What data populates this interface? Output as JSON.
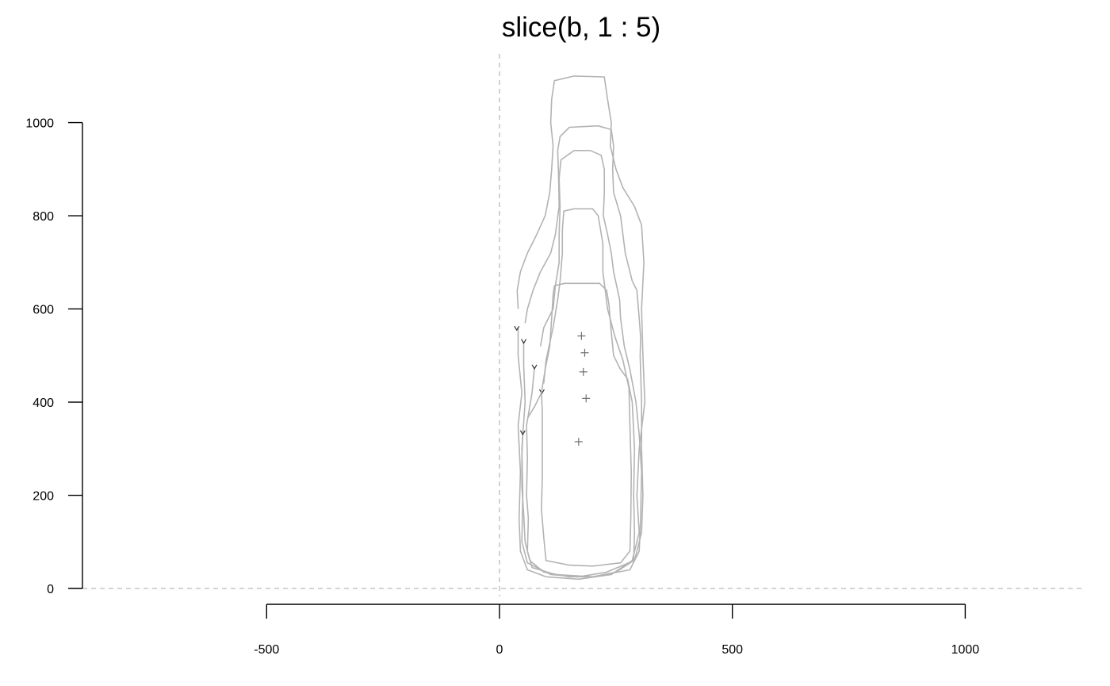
{
  "chart_data": {
    "type": "line",
    "title": "slice(b, 1 : 5)",
    "xlabel": "",
    "ylabel": "",
    "xlim": [
      -900,
      1250
    ],
    "ylim": [
      0,
      1000
    ],
    "x_ticks": [
      -500,
      0,
      500,
      1000
    ],
    "x_tick_labels": [
      "-500",
      "0",
      "500",
      "1000"
    ],
    "y_ticks": [
      0,
      200,
      400,
      600,
      800,
      1000
    ],
    "y_tick_labels": [
      "0",
      "200",
      "400",
      "600",
      "800",
      "1000"
    ],
    "grid": false,
    "reference_lines": {
      "x": 0,
      "y": 0,
      "style": "dashed"
    },
    "colors": {
      "outline": "#b3b3b3",
      "centroid": "#707070",
      "start": "#333333",
      "axis": "#000000",
      "reference": "#bbbbbb"
    },
    "series": [
      {
        "outline": [
          [
            40,
            600
          ],
          [
            38,
            640
          ],
          [
            45,
            680
          ],
          [
            60,
            720
          ],
          [
            80,
            760
          ],
          [
            98,
            800
          ],
          [
            108,
            850
          ],
          [
            112,
            900
          ],
          [
            115,
            950
          ],
          [
            110,
            1000
          ],
          [
            112,
            1050
          ],
          [
            118,
            1090
          ],
          [
            160,
            1100
          ],
          [
            225,
            1098
          ],
          [
            232,
            1050
          ],
          [
            240,
            1000
          ],
          [
            238,
            950
          ],
          [
            250,
            900
          ],
          [
            265,
            860
          ],
          [
            290,
            820
          ],
          [
            305,
            780
          ],
          [
            310,
            700
          ],
          [
            305,
            600
          ],
          [
            308,
            500
          ],
          [
            312,
            400
          ],
          [
            300,
            300
          ],
          [
            295,
            200
          ],
          [
            300,
            120
          ],
          [
            285,
            60
          ],
          [
            240,
            30
          ],
          [
            170,
            20
          ],
          [
            100,
            25
          ],
          [
            60,
            40
          ],
          [
            45,
            80
          ],
          [
            42,
            150
          ],
          [
            45,
            250
          ],
          [
            40,
            350
          ],
          [
            48,
            420
          ],
          [
            40,
            500
          ],
          [
            40,
            560
          ]
        ],
        "centroid": [
          176,
          542
        ],
        "start": [
          37,
          558
        ]
      },
      {
        "outline": [
          [
            55,
            570
          ],
          [
            60,
            600
          ],
          [
            72,
            640
          ],
          [
            88,
            680
          ],
          [
            110,
            720
          ],
          [
            120,
            760
          ],
          [
            128,
            820
          ],
          [
            127,
            880
          ],
          [
            125,
            940
          ],
          [
            130,
            970
          ],
          [
            150,
            990
          ],
          [
            212,
            993
          ],
          [
            240,
            985
          ],
          [
            245,
            950
          ],
          [
            243,
            900
          ],
          [
            245,
            850
          ],
          [
            260,
            800
          ],
          [
            270,
            720
          ],
          [
            285,
            660
          ],
          [
            295,
            640
          ],
          [
            300,
            580
          ],
          [
            303,
            540
          ],
          [
            302,
            500
          ],
          [
            305,
            400
          ],
          [
            305,
            300
          ],
          [
            308,
            200
          ],
          [
            305,
            120
          ],
          [
            290,
            60
          ],
          [
            230,
            35
          ],
          [
            170,
            25
          ],
          [
            110,
            30
          ],
          [
            60,
            55
          ],
          [
            48,
            100
          ],
          [
            50,
            200
          ],
          [
            48,
            300
          ],
          [
            55,
            400
          ],
          [
            52,
            480
          ],
          [
            52,
            530
          ]
        ],
        "centroid": [
          183,
          506
        ],
        "start": [
          52,
          530
        ]
      },
      {
        "outline": [
          [
            88,
            520
          ],
          [
            95,
            560
          ],
          [
            115,
            600
          ],
          [
            120,
            650
          ],
          [
            128,
            700
          ],
          [
            128,
            760
          ],
          [
            130,
            820
          ],
          [
            128,
            880
          ],
          [
            132,
            920
          ],
          [
            160,
            940
          ],
          [
            195,
            940
          ],
          [
            218,
            930
          ],
          [
            225,
            900
          ],
          [
            225,
            850
          ],
          [
            223,
            800
          ],
          [
            232,
            760
          ],
          [
            240,
            720
          ],
          [
            245,
            680
          ],
          [
            258,
            620
          ],
          [
            260,
            580
          ],
          [
            268,
            520
          ],
          [
            280,
            470
          ],
          [
            293,
            400
          ],
          [
            300,
            330
          ],
          [
            305,
            250
          ],
          [
            303,
            150
          ],
          [
            300,
            80
          ],
          [
            280,
            40
          ],
          [
            200,
            25
          ],
          [
            120,
            30
          ],
          [
            70,
            45
          ],
          [
            60,
            80
          ],
          [
            62,
            150
          ],
          [
            58,
            200
          ],
          [
            60,
            280
          ],
          [
            58,
            350
          ],
          [
            70,
            420
          ],
          [
            75,
            475
          ]
        ],
        "centroid": [
          180,
          465
        ],
        "start": [
          75,
          475
        ]
      },
      {
        "outline": [
          [
            90,
            420
          ],
          [
            92,
            380
          ],
          [
            92,
            300
          ],
          [
            92,
            240
          ],
          [
            90,
            170
          ],
          [
            95,
            110
          ],
          [
            100,
            60
          ],
          [
            150,
            50
          ],
          [
            200,
            48
          ],
          [
            260,
            55
          ],
          [
            280,
            80
          ],
          [
            282,
            150
          ],
          [
            283,
            250
          ],
          [
            280,
            350
          ],
          [
            278,
            430
          ],
          [
            265,
            490
          ],
          [
            248,
            540
          ],
          [
            232,
            600
          ],
          [
            222,
            680
          ],
          [
            222,
            740
          ],
          [
            212,
            800
          ],
          [
            200,
            815
          ],
          [
            160,
            815
          ],
          [
            138,
            810
          ],
          [
            135,
            770
          ],
          [
            135,
            720
          ],
          [
            130,
            660
          ],
          [
            125,
            620
          ],
          [
            115,
            560
          ],
          [
            100,
            490
          ],
          [
            95,
            440
          ]
        ],
        "centroid": [
          186,
          408
        ],
        "start": [
          91,
          422
        ]
      },
      {
        "outline": [
          [
            50,
            340
          ],
          [
            48,
            280
          ],
          [
            48,
            220
          ],
          [
            52,
            160
          ],
          [
            55,
            100
          ],
          [
            65,
            60
          ],
          [
            95,
            35
          ],
          [
            150,
            25
          ],
          [
            200,
            25
          ],
          [
            250,
            35
          ],
          [
            288,
            60
          ],
          [
            290,
            120
          ],
          [
            288,
            200
          ],
          [
            290,
            300
          ],
          [
            285,
            400
          ],
          [
            275,
            450
          ],
          [
            260,
            470
          ],
          [
            245,
            500
          ],
          [
            240,
            550
          ],
          [
            235,
            610
          ],
          [
            230,
            640
          ],
          [
            215,
            655
          ],
          [
            180,
            655
          ],
          [
            140,
            655
          ],
          [
            118,
            650
          ],
          [
            115,
            630
          ],
          [
            112,
            580
          ],
          [
            108,
            520
          ],
          [
            98,
            470
          ],
          [
            90,
            420
          ],
          [
            75,
            390
          ],
          [
            60,
            365
          ]
        ],
        "centroid": [
          170,
          315
        ],
        "start": [
          50,
          334
        ]
      }
    ]
  }
}
